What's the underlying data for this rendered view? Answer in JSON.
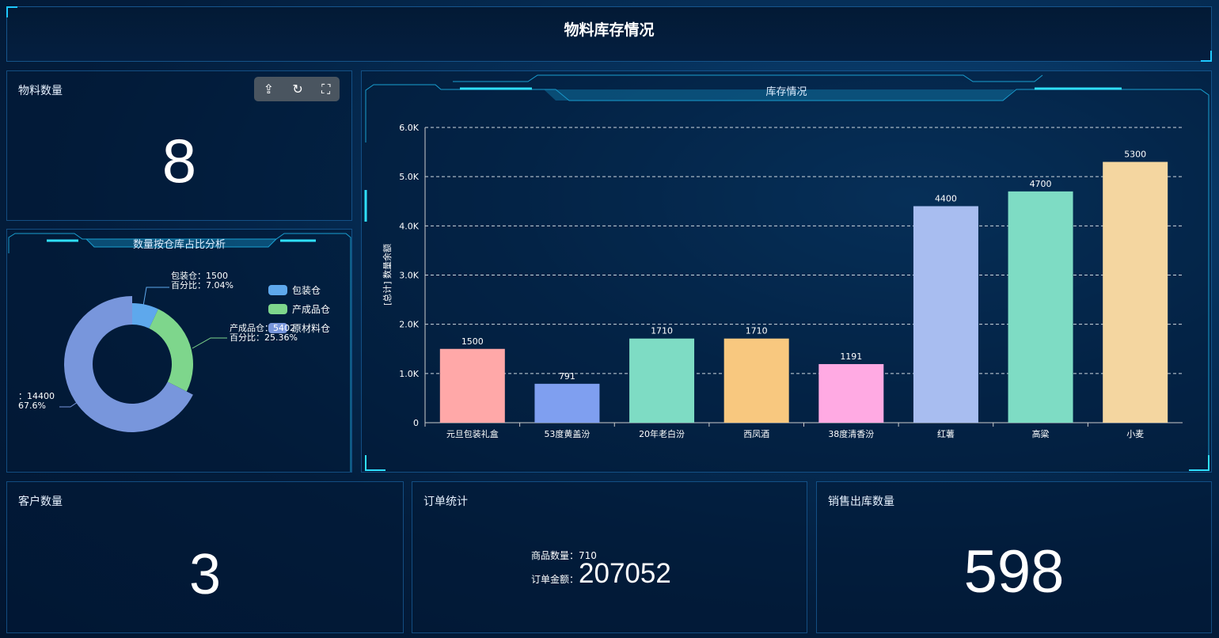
{
  "header": {
    "title": "物料库存情况"
  },
  "material_count": {
    "title": "物料数量",
    "value": "8"
  },
  "toolbar": {
    "icons": [
      "export-icon",
      "refresh-icon",
      "fullscreen-icon"
    ]
  },
  "pie": {
    "title": "数量按仓库占比分析",
    "legend": [
      "包装仓",
      "产成品仓",
      "原材料仓"
    ],
    "labels": {
      "a1": "包装仓：1500",
      "a2": "百分比：7.04%",
      "b1": "产成品仓：5402",
      "b2": "百分比：25.36%",
      "c1": "：14400",
      "c2": "67.6%"
    }
  },
  "customer": {
    "title": "客户数量",
    "value": "3"
  },
  "orders": {
    "title": "订单统计",
    "goods_label": "商品数量：",
    "goods_value": "710",
    "amount_label": "订单金额：",
    "amount_value": "207052"
  },
  "sales": {
    "title": "销售出库数量",
    "value": "598"
  },
  "chart_data": [
    {
      "type": "bar",
      "title": "库存情况",
      "ylabel": "[总计] 数量余额",
      "ylim": [
        0,
        6000
      ],
      "yticks": [
        "0",
        "1.0K",
        "2.0K",
        "3.0K",
        "4.0K",
        "5.0K",
        "6.0K"
      ],
      "categories": [
        "元旦包装礼盒",
        "53度黄盖汾",
        "20年老白汾",
        "西凤酒",
        "38度清香汾",
        "红薯",
        "高粱",
        "小麦"
      ],
      "values": [
        1500,
        791,
        1710,
        1710,
        1191,
        4400,
        4700,
        5300
      ],
      "colors": [
        "#ffa8a8",
        "#7f9ff0",
        "#7edcc4",
        "#f8c87f",
        "#ffaae3",
        "#a8bdf0",
        "#7edcc4",
        "#f4d6a0"
      ],
      "grid": true
    },
    {
      "type": "pie",
      "categories": [
        "包装仓",
        "产成品仓",
        "原材料仓"
      ],
      "values": [
        1500,
        5402,
        14400
      ],
      "percent": [
        7.04,
        25.36,
        67.6
      ],
      "colors": [
        "#5ea8ec",
        "#7ed68c",
        "#7896dc"
      ],
      "legend": "top-right"
    }
  ]
}
